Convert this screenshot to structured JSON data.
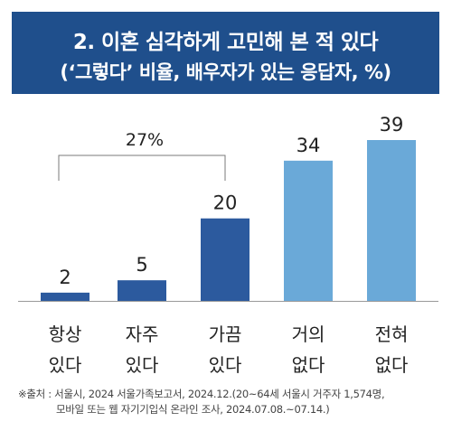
{
  "header": {
    "title_line1": "2. 이혼 심각하게 고민해 본 적 있다",
    "title_line2": "(‘그렇다’ 비율, 배우자가 있는 응답자, %)"
  },
  "chart_data": {
    "type": "bar",
    "categories": [
      [
        "항상",
        "있다"
      ],
      [
        "자주",
        "있다"
      ],
      [
        "가끔",
        "있다"
      ],
      [
        "거의",
        "없다"
      ],
      [
        "전혀",
        "없다"
      ]
    ],
    "values": [
      2,
      5,
      20,
      34,
      39
    ],
    "value_labels": [
      "2",
      "5",
      "20",
      "34",
      "39"
    ],
    "bar_colors": [
      "#2c5a9e",
      "#2c5a9e",
      "#2c5a9e",
      "#6aa9d8",
      "#6aa9d8"
    ],
    "bracket_label": "27%",
    "ylim": [
      0,
      45
    ],
    "grid": false
  },
  "source": {
    "line1": "※출처 : 서울시, 2024 서울가족보고서, 2024.12.(20~64세 서울시 거주자 1,574명,",
    "line2": "모바일 또는 웹 자기기입식 온라인 조사, 2024.07.08.~07.14.)"
  }
}
